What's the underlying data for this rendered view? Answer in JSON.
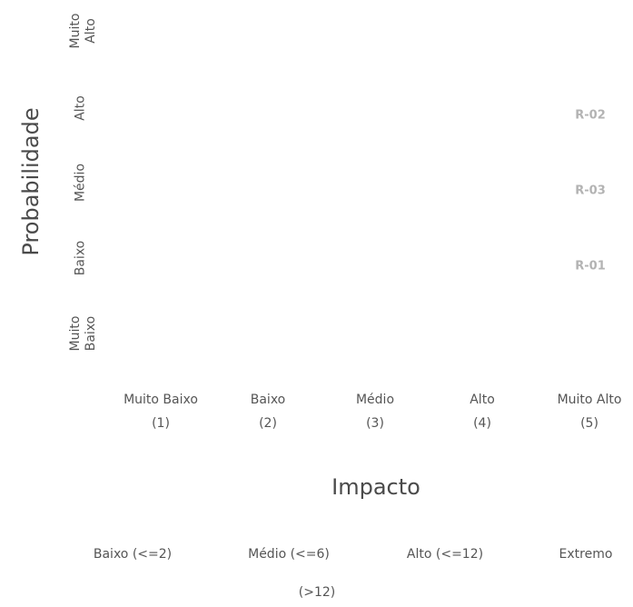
{
  "matrix": {
    "y_axis_title": "Probabilidade",
    "x_axis_title": "Impacto",
    "probability_levels": [
      {
        "line1": "Muito",
        "line2": "Alto"
      },
      {
        "line1": "Alto",
        "line2": ""
      },
      {
        "line1": "Médio",
        "line2": ""
      },
      {
        "line1": "Baixo",
        "line2": ""
      },
      {
        "line1": "Muito",
        "line2": "Baixo"
      }
    ],
    "impact_levels": [
      {
        "name": "Muito Baixo",
        "value": "(1)"
      },
      {
        "name": "Baixo",
        "value": "(2)"
      },
      {
        "name": "Médio",
        "value": "(3)"
      },
      {
        "name": "Alto",
        "value": "(4)"
      },
      {
        "name": "Muito Alto",
        "value": "(5)"
      }
    ],
    "risks": [
      {
        "id": "R-02",
        "probability": "Alto",
        "impact": "Muito Alto"
      },
      {
        "id": "R-03",
        "probability": "Médio",
        "impact": "Muito Alto"
      },
      {
        "id": "R-01",
        "probability": "Baixo",
        "impact": "Muito Alto"
      }
    ],
    "risk_color": "#b3b3b3"
  },
  "legend": {
    "items": [
      "Baixo (<=2)",
      "Médio (<=6)",
      "Alto (<=12)",
      "Extremo",
      "(>12)"
    ]
  }
}
